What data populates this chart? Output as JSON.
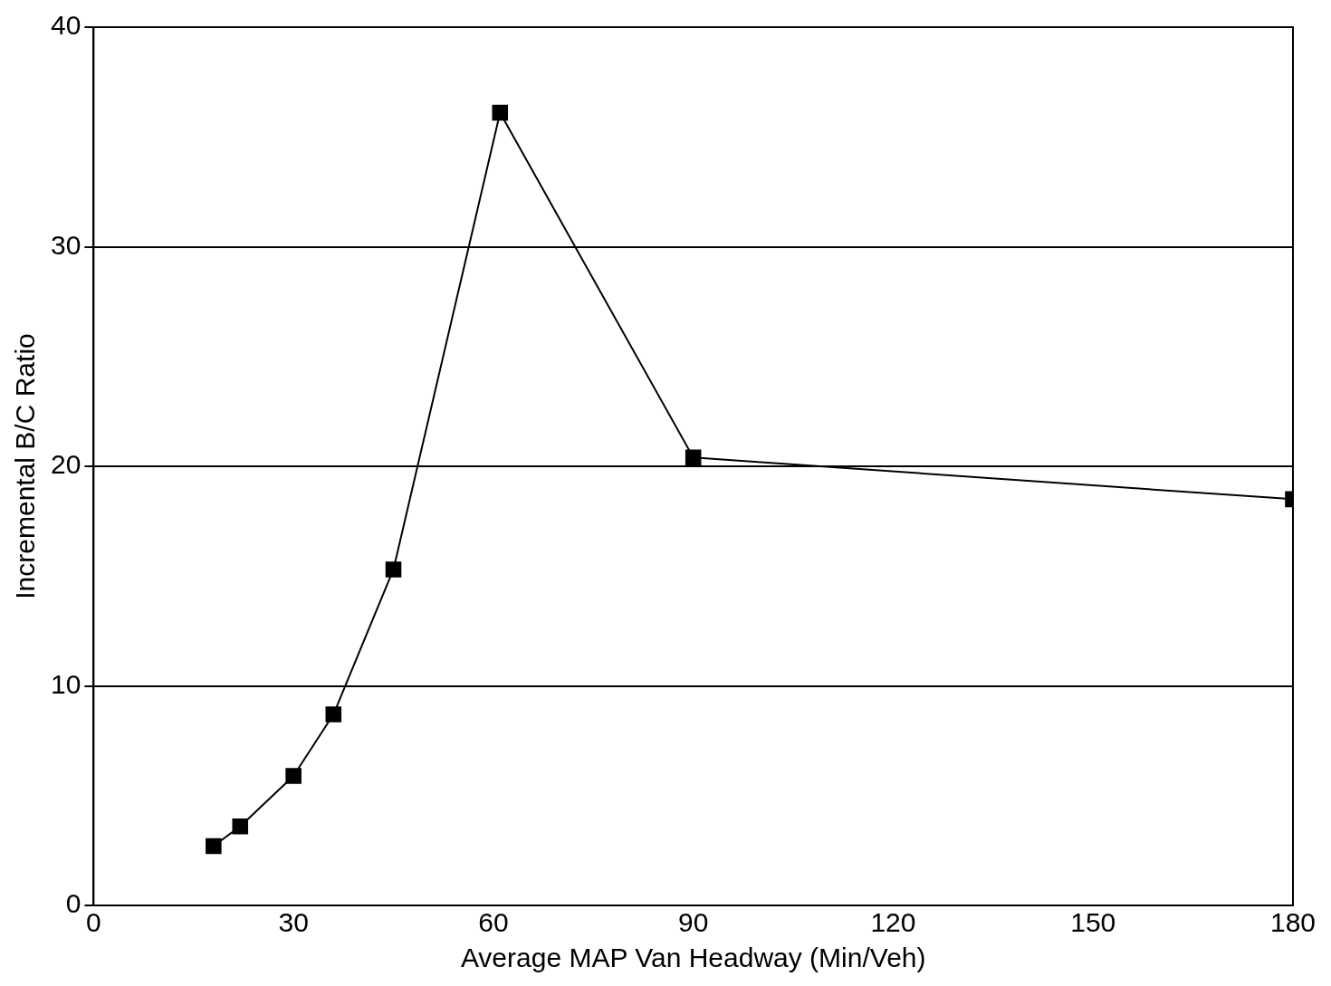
{
  "chart_data": {
    "type": "line",
    "xlabel": "Average MAP Van Headway (Min/Veh)",
    "ylabel": "Incremental B/C Ratio",
    "x": [
      18,
      22,
      30,
      36,
      45,
      61,
      90,
      180
    ],
    "series": [
      {
        "color": "#000000",
        "values": [
          2.7,
          3.6,
          5.9,
          8.7,
          15.3,
          36.1,
          20.4,
          18.5
        ]
      }
    ],
    "xlim": [
      0,
      180
    ],
    "xticks": [
      0,
      30,
      60,
      90,
      120,
      150,
      180
    ],
    "ylim": [
      0,
      40
    ],
    "yticks": [
      0,
      10,
      20,
      30,
      40
    ],
    "grid": "y",
    "legend": false,
    "marker": "square",
    "line_style": "solid"
  }
}
